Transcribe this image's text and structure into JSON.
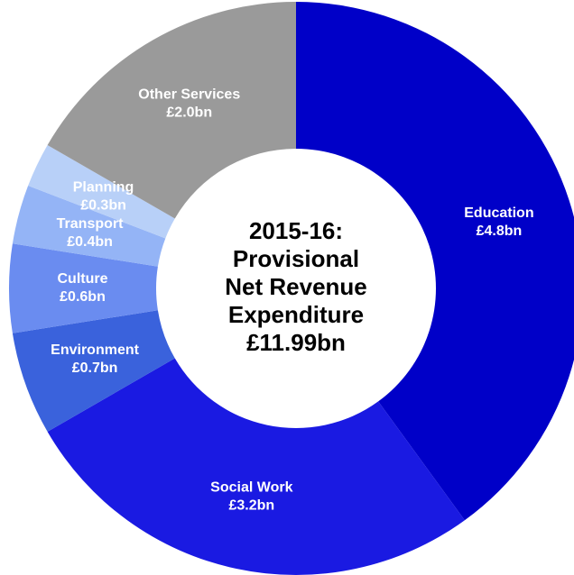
{
  "chart_data": {
    "type": "donut",
    "title": [
      "2015-16:",
      "Provisional",
      "Net Revenue",
      "Expenditure",
      "£11.99bn"
    ],
    "categories": [
      "Education",
      "Social Work",
      "Environment",
      "Culture",
      "Transport",
      "Planning",
      "Other Services"
    ],
    "values": [
      4.8,
      3.2,
      0.7,
      0.6,
      0.4,
      0.3,
      2.0
    ],
    "value_labels": [
      "£4.8bn",
      "£3.2bn",
      "£0.7bn",
      "£0.6bn",
      "£0.4bn",
      "£0.3bn",
      "£2.0bn"
    ],
    "colors": [
      "#0000c8",
      "#1a1ae2",
      "#3a62dc",
      "#6a8cf0",
      "#94b4f6",
      "#b8d0f8",
      "#9a9a9a"
    ]
  }
}
